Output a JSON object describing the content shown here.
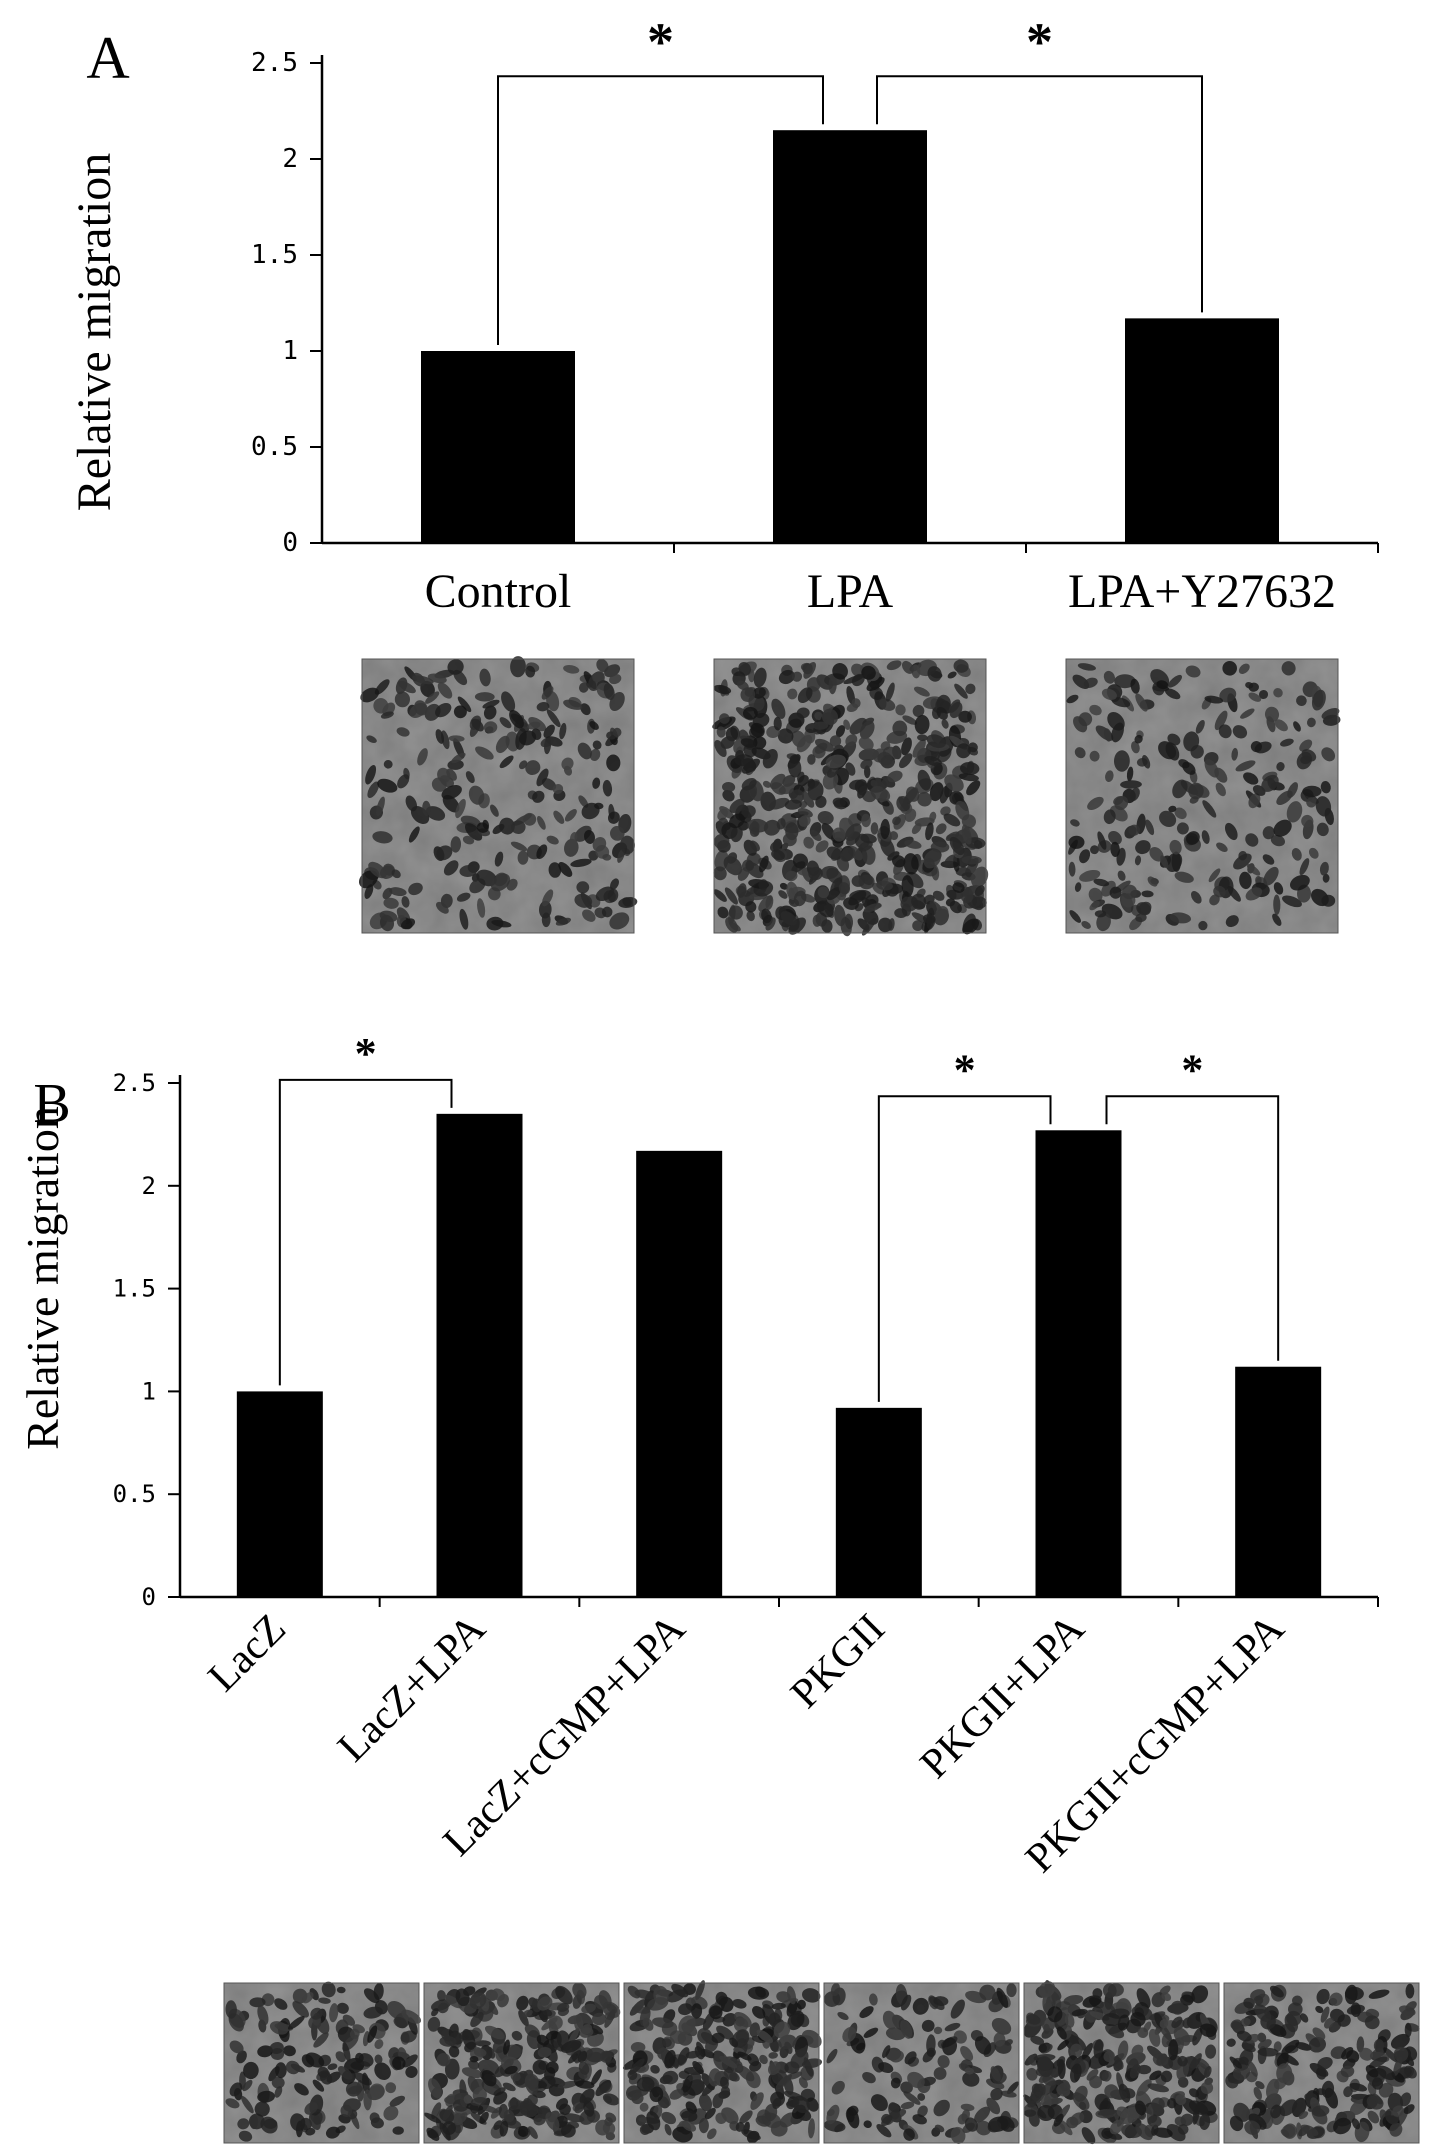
{
  "figure": {
    "colors": {
      "bar": "#000000",
      "axis": "#000000",
      "background": "#ffffff",
      "micrograph_bg": "#7d7d7d",
      "micrograph_cell": "#1e1e1e"
    }
  },
  "chart_data": [
    {
      "panel_label": "A",
      "type": "bar",
      "categories": [
        "Control",
        "LPA",
        "LPA+Y27632"
      ],
      "values": [
        1.0,
        2.15,
        1.17
      ],
      "title": "",
      "xlabel": "",
      "ylabel": "Relative migration",
      "ylim": [
        0,
        2.5
      ],
      "yticks": [
        "0",
        "0.5",
        "1",
        "1.5",
        "2",
        "2.5"
      ],
      "grid": false,
      "legend": "none",
      "significance": [
        {
          "from": "Control",
          "to": "LPA",
          "label": "*"
        },
        {
          "from": "LPA",
          "to": "LPA+Y27632",
          "label": "*"
        }
      ],
      "micrographs": [
        "Control",
        "LPA",
        "LPA+Y27632"
      ]
    },
    {
      "panel_label": "B",
      "type": "bar",
      "categories": [
        "LacZ",
        "LacZ+LPA",
        "LacZ+cGMP+LPA",
        "PKGII",
        "PKGII+LPA",
        "PKGII+cGMP+LPA"
      ],
      "values": [
        1.0,
        2.35,
        2.17,
        0.92,
        2.27,
        1.12
      ],
      "title": "",
      "xlabel": "",
      "ylabel": "Relative migration",
      "ylim": [
        0,
        2.5
      ],
      "yticks": [
        "0",
        "0.5",
        "1",
        "1.5",
        "2",
        "2.5"
      ],
      "grid": false,
      "legend": "none",
      "significance": [
        {
          "from": "LacZ",
          "to": "LacZ+LPA",
          "label": "*"
        },
        {
          "from": "PKGII",
          "to": "PKGII+LPA",
          "label": "*"
        },
        {
          "from": "PKGII+LPA",
          "to": "PKGII+cGMP+LPA",
          "label": "*"
        }
      ],
      "micrographs": [
        "LacZ",
        "LacZ+LPA",
        "LacZ+cGMP+LPA",
        "PKGII",
        "PKGII+LPA",
        "PKGII+cGMP+LPA"
      ]
    }
  ]
}
